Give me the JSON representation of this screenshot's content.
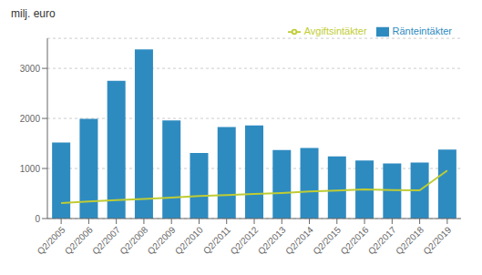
{
  "chart_data": {
    "type": "bar",
    "ylabel": "milj. euro",
    "categories": [
      "Q2/2005",
      "Q2/2006",
      "Q2/2007",
      "Q2/2008",
      "Q2/2009",
      "Q2/2010",
      "Q2/2011",
      "Q2/2012",
      "Q2/2013",
      "Q2/2014",
      "Q2/2015",
      "Q2/2016",
      "Q2/2017",
      "Q2/2018",
      "Q2/2019"
    ],
    "series": [
      {
        "name": "Ränteintäkter",
        "type": "bar",
        "color": "#2E8BC0",
        "values": [
          1520,
          1990,
          2750,
          3380,
          1960,
          1310,
          1830,
          1860,
          1370,
          1410,
          1240,
          1160,
          1100,
          1120,
          1380
        ]
      },
      {
        "name": "Avgiftsintäkter",
        "type": "line",
        "color": "#BFCC33",
        "values": [
          310,
          340,
          370,
          390,
          420,
          450,
          470,
          490,
          510,
          540,
          560,
          580,
          570,
          565,
          960
        ]
      }
    ],
    "ylim": [
      0,
      3600
    ],
    "yticks": [
      0,
      1000,
      2000,
      3000
    ],
    "grid": true,
    "legend": "upper right"
  }
}
